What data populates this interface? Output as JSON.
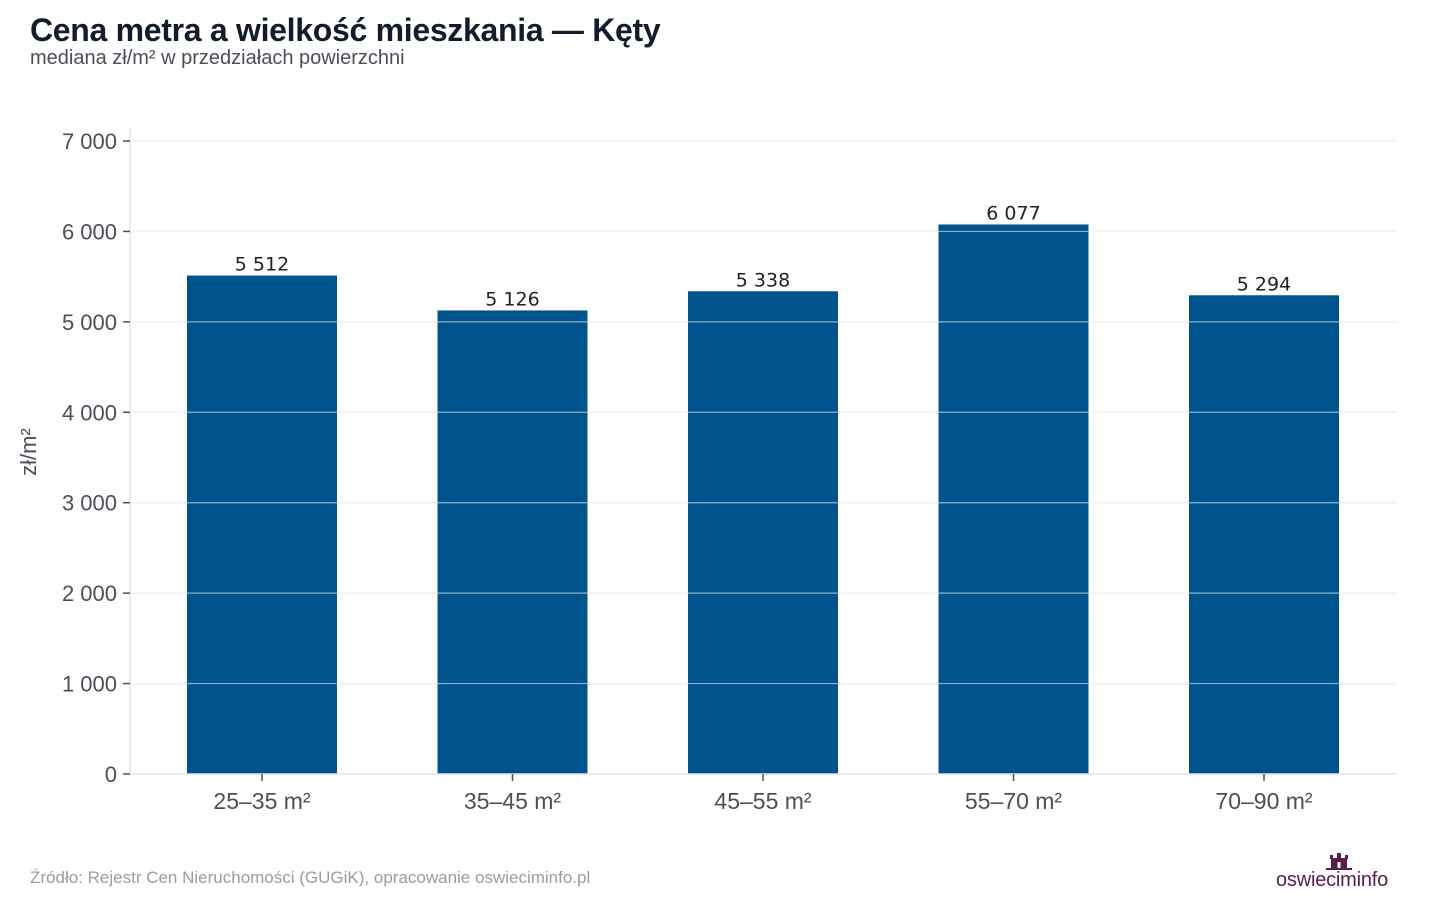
{
  "header": {
    "title": "Cena metra a wielkość mieszkania — Kęty",
    "subtitle": "mediana zł/m² w przedziałach powierzchni"
  },
  "footer": {
    "source": "Źródło: Rejestr Cen Nieruchomości (GUGiK), opracowanie oswieciminfo.pl",
    "logo_text": "oswieciminfo"
  },
  "colors": {
    "bar": "#00538c",
    "grid": "#e6e6e6",
    "axis_text": "#4a4f58",
    "label_text": "#222222",
    "logo": "#5a1d4a"
  },
  "chart_data": {
    "type": "bar",
    "title": "Cena metra a wielkość mieszkania — Kęty",
    "subtitle": "mediana zł/m² w przedziałach powierzchni",
    "xlabel": "",
    "ylabel": "zł/m²",
    "categories": [
      "25–35 m²",
      "35–45 m²",
      "45–55 m²",
      "55–70 m²",
      "70–90 m²"
    ],
    "values": [
      5512,
      5126,
      5338,
      6077,
      5294
    ],
    "value_labels": [
      "5 512",
      "5 126",
      "5 338",
      "6 077",
      "5 294"
    ],
    "ylim": [
      0,
      7000
    ],
    "yticks": [
      0,
      1000,
      2000,
      3000,
      4000,
      5000,
      6000,
      7000
    ],
    "ytick_labels": [
      "0",
      "1 000",
      "2 000",
      "3 000",
      "4 000",
      "5 000",
      "6 000",
      "7 000"
    ],
    "grid": true,
    "legend": "none"
  }
}
